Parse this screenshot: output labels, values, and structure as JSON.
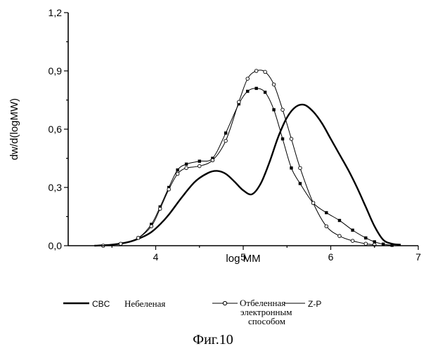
{
  "chart_data": {
    "type": "line",
    "xlabel": "log MM",
    "ylabel": "dw/d(logMW)",
    "xlim": [
      3,
      7
    ],
    "ylim": [
      0,
      1.2
    ],
    "x_ticks": [
      "4",
      "5",
      "6",
      "7"
    ],
    "y_ticks": [
      "0,0",
      "0,3",
      "0,6",
      "0,9",
      "1,2"
    ],
    "grid": false,
    "legend_position": "bottom",
    "series": [
      {
        "name": "CBC",
        "style": "solid-thick",
        "x": [
          3.3,
          3.5,
          3.7,
          3.85,
          3.95,
          4.05,
          4.15,
          4.3,
          4.45,
          4.6,
          4.7,
          4.8,
          4.9,
          5.0,
          5.1,
          5.2,
          5.3,
          5.4,
          5.5,
          5.6,
          5.7,
          5.8,
          5.9,
          6.0,
          6.1,
          6.2,
          6.3,
          6.4,
          6.5,
          6.6,
          6.7,
          6.8
        ],
        "y": [
          0.0,
          0.005,
          0.02,
          0.045,
          0.07,
          0.11,
          0.16,
          0.25,
          0.33,
          0.375,
          0.385,
          0.37,
          0.33,
          0.285,
          0.265,
          0.32,
          0.43,
          0.56,
          0.66,
          0.715,
          0.725,
          0.69,
          0.63,
          0.55,
          0.47,
          0.39,
          0.3,
          0.2,
          0.1,
          0.03,
          0.01,
          0.005
        ]
      },
      {
        "name": "Небеленая",
        "style": "line-filled-square",
        "x": [
          3.4,
          3.6,
          3.8,
          3.95,
          4.05,
          4.15,
          4.25,
          4.35,
          4.5,
          4.65,
          4.8,
          4.95,
          5.05,
          5.15,
          5.25,
          5.35,
          5.45,
          5.55,
          5.65,
          5.8,
          5.95,
          6.1,
          6.25,
          6.4,
          6.5,
          6.6,
          6.7
        ],
        "y": [
          0.0,
          0.01,
          0.04,
          0.11,
          0.2,
          0.3,
          0.39,
          0.42,
          0.435,
          0.45,
          0.58,
          0.73,
          0.795,
          0.81,
          0.79,
          0.7,
          0.55,
          0.4,
          0.32,
          0.22,
          0.17,
          0.13,
          0.08,
          0.04,
          0.02,
          0.008,
          0.002
        ]
      },
      {
        "name": "Отбеленная электронным способом",
        "style": "line-open-circle",
        "x": [
          3.4,
          3.6,
          3.8,
          3.95,
          4.05,
          4.15,
          4.25,
          4.35,
          4.5,
          4.65,
          4.8,
          4.95,
          5.05,
          5.15,
          5.25,
          5.35,
          5.45,
          5.55,
          5.65,
          5.8,
          5.95,
          6.1,
          6.25,
          6.4,
          6.5
        ],
        "y": [
          0.0,
          0.01,
          0.04,
          0.1,
          0.19,
          0.29,
          0.37,
          0.4,
          0.41,
          0.44,
          0.54,
          0.74,
          0.86,
          0.9,
          0.895,
          0.83,
          0.7,
          0.55,
          0.4,
          0.22,
          0.1,
          0.05,
          0.025,
          0.01,
          0.005
        ]
      },
      {
        "name": "Z-P",
        "style": "line-plain",
        "x": [],
        "y": []
      }
    ],
    "legend": {
      "entries": [
        {
          "label": "CBC",
          "marker": "none"
        },
        {
          "label": "Небеленая",
          "marker": "none"
        },
        {
          "label": "Отбеленная",
          "line2": "электронным",
          "line3": "способом",
          "marker": "open-circle"
        },
        {
          "label": "Z-P",
          "marker": "none"
        }
      ]
    },
    "caption": "Фиг.10"
  }
}
